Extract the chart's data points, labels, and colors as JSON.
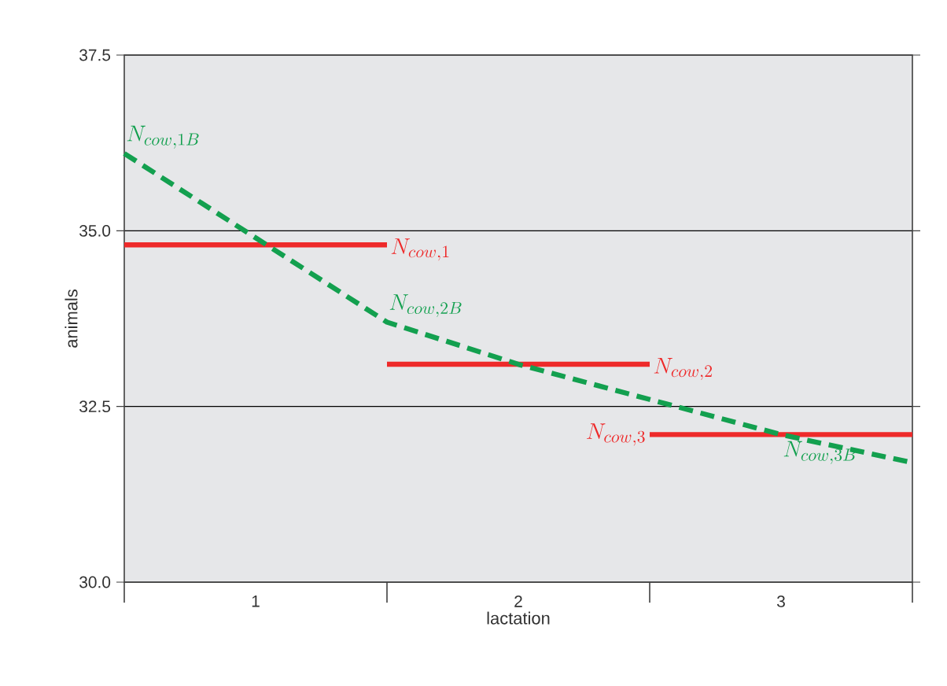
{
  "chart_data": {
    "type": "line",
    "xlabel": "lactation",
    "ylabel": "animals",
    "xlim": [
      0.5,
      3.5
    ],
    "ylim": [
      30,
      37.5
    ],
    "xticks": [
      {
        "value": 0.5,
        "label": null
      },
      1,
      {
        "value": 1.5,
        "label": null
      },
      2,
      {
        "value": 2.5,
        "label": null
      },
      3,
      {
        "value": 3.5,
        "label": null
      }
    ],
    "yticks": [
      {
        "value": 30,
        "label": "30.0"
      },
      {
        "value": 32.5,
        "label": "32.5"
      },
      {
        "value": 35,
        "label": "35.0"
      },
      {
        "value": 37.5,
        "label": "37.5"
      }
    ],
    "grid": "y",
    "marker": "none",
    "series": [
      {
        "name": "N_{cow, 1}",
        "color": "#ee2a2a",
        "x": [
          0.5,
          1.5
        ],
        "values": [
          34.8,
          34.8
        ],
        "line_style": "solid"
      },
      {
        "name": "N_{cow, 2}",
        "color": "#ee2a2a",
        "x": [
          1.5,
          2.5
        ],
        "values": [
          33.1,
          33.1
        ],
        "line_style": "solid"
      },
      {
        "name": "N_{cow, 3}",
        "color": "#ee2a2a",
        "x": [
          2.5,
          3.5
        ],
        "values": [
          32.1,
          32.1
        ],
        "line_style": "solid"
      },
      {
        "color": "#13a04f",
        "x": [
          0.5,
          1,
          1.5,
          2,
          2.5,
          3,
          3.5
        ],
        "values": [
          36.1,
          34.9,
          33.7,
          33.1,
          32.6,
          32.1,
          31.7
        ],
        "line_style": "dashed"
      }
    ],
    "annotations": [
      {
        "text": "N_{cow, 1B}",
        "x": 0.5,
        "y": 36.1
      },
      {
        "text": "N_{cow, 2B}",
        "x": 1.5,
        "y": 33.7
      },
      {
        "text": "N_{cow, 3B}",
        "x": 3,
        "y": 32.1
      }
    ]
  }
}
